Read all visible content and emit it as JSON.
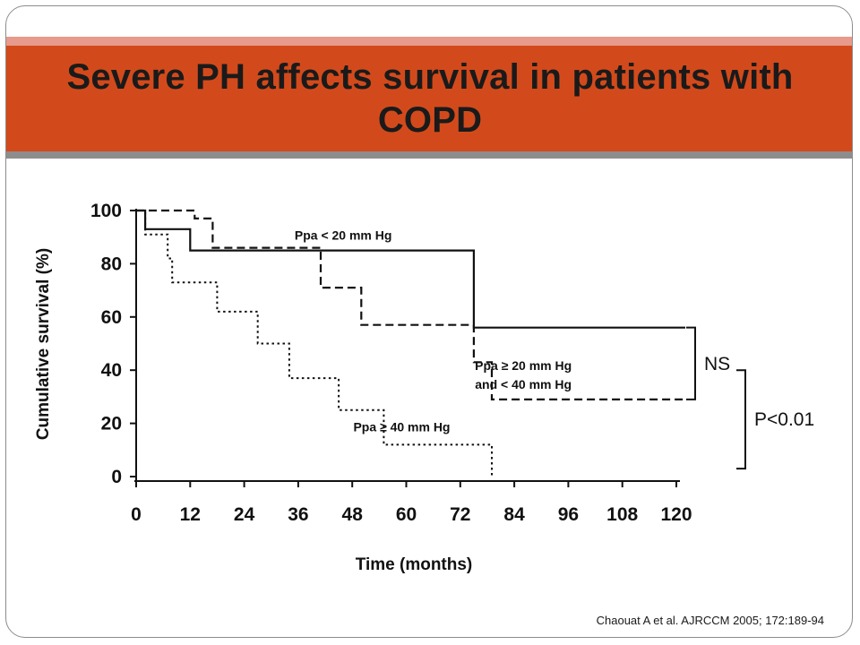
{
  "slide": {
    "title": "Severe PH affects survival in patients with COPD",
    "citation": "Chaouat A et al. AJRCCM 2005; 172:189-94"
  },
  "chart_data": {
    "type": "line",
    "subtype": "kaplan-meier-step",
    "xlabel": "Time (months)",
    "ylabel": "Cumulative survival (%)",
    "xlim": [
      0,
      120
    ],
    "ylim": [
      0,
      100
    ],
    "x_ticks": [
      "0",
      "12",
      "24",
      "36",
      "48",
      "60",
      "72",
      "84",
      "96",
      "108",
      "120"
    ],
    "y_ticks": [
      "0",
      "20",
      "40",
      "60",
      "80",
      "100"
    ],
    "grid": false,
    "legend": "none",
    "series": [
      {
        "name": "Ppa < 20 mm Hg",
        "line_style": "solid",
        "points": [
          [
            0,
            100
          ],
          [
            2,
            100
          ],
          [
            2,
            93
          ],
          [
            12,
            93
          ],
          [
            12,
            85
          ],
          [
            75,
            85
          ],
          [
            75,
            56
          ],
          [
            122,
            56
          ]
        ]
      },
      {
        "name": "Ppa ≥ 20 mm Hg and < 40 mm Hg",
        "line_style": "dashed",
        "points": [
          [
            0,
            100
          ],
          [
            13,
            100
          ],
          [
            13,
            97
          ],
          [
            17,
            97
          ],
          [
            17,
            86
          ],
          [
            41,
            86
          ],
          [
            41,
            71
          ],
          [
            50,
            71
          ],
          [
            50,
            57
          ],
          [
            75,
            57
          ],
          [
            75,
            43
          ],
          [
            79,
            43
          ],
          [
            79,
            29
          ],
          [
            122,
            29
          ]
        ]
      },
      {
        "name": "Ppa ≥ 40 mm Hg",
        "line_style": "dotted",
        "points": [
          [
            0,
            100
          ],
          [
            2,
            100
          ],
          [
            2,
            91
          ],
          [
            7,
            91
          ],
          [
            7,
            82
          ],
          [
            8,
            82
          ],
          [
            8,
            73
          ],
          [
            18,
            73
          ],
          [
            18,
            62
          ],
          [
            27,
            62
          ],
          [
            27,
            50
          ],
          [
            34,
            50
          ],
          [
            34,
            37
          ],
          [
            45,
            37
          ],
          [
            45,
            25
          ],
          [
            55,
            25
          ],
          [
            55,
            12
          ],
          [
            79,
            12
          ],
          [
            79,
            0
          ]
        ]
      }
    ],
    "annotations": [
      {
        "text": "Ppa < 20 mm Hg",
        "x": 46,
        "y": 89
      },
      {
        "text": "Ppa ≥ 20 mm Hg",
        "x": 86,
        "y": 40
      },
      {
        "text": "and < 40 mm Hg",
        "x": 86,
        "y": 33
      },
      {
        "text": "Ppa ≥ 40 mm Hg",
        "x": 59,
        "y": 17
      }
    ],
    "brackets": [
      {
        "label": "NS",
        "y_from": 56,
        "y_to": 29
      },
      {
        "label": "P<0.01",
        "y_from": 40,
        "y_to": 3
      }
    ]
  }
}
